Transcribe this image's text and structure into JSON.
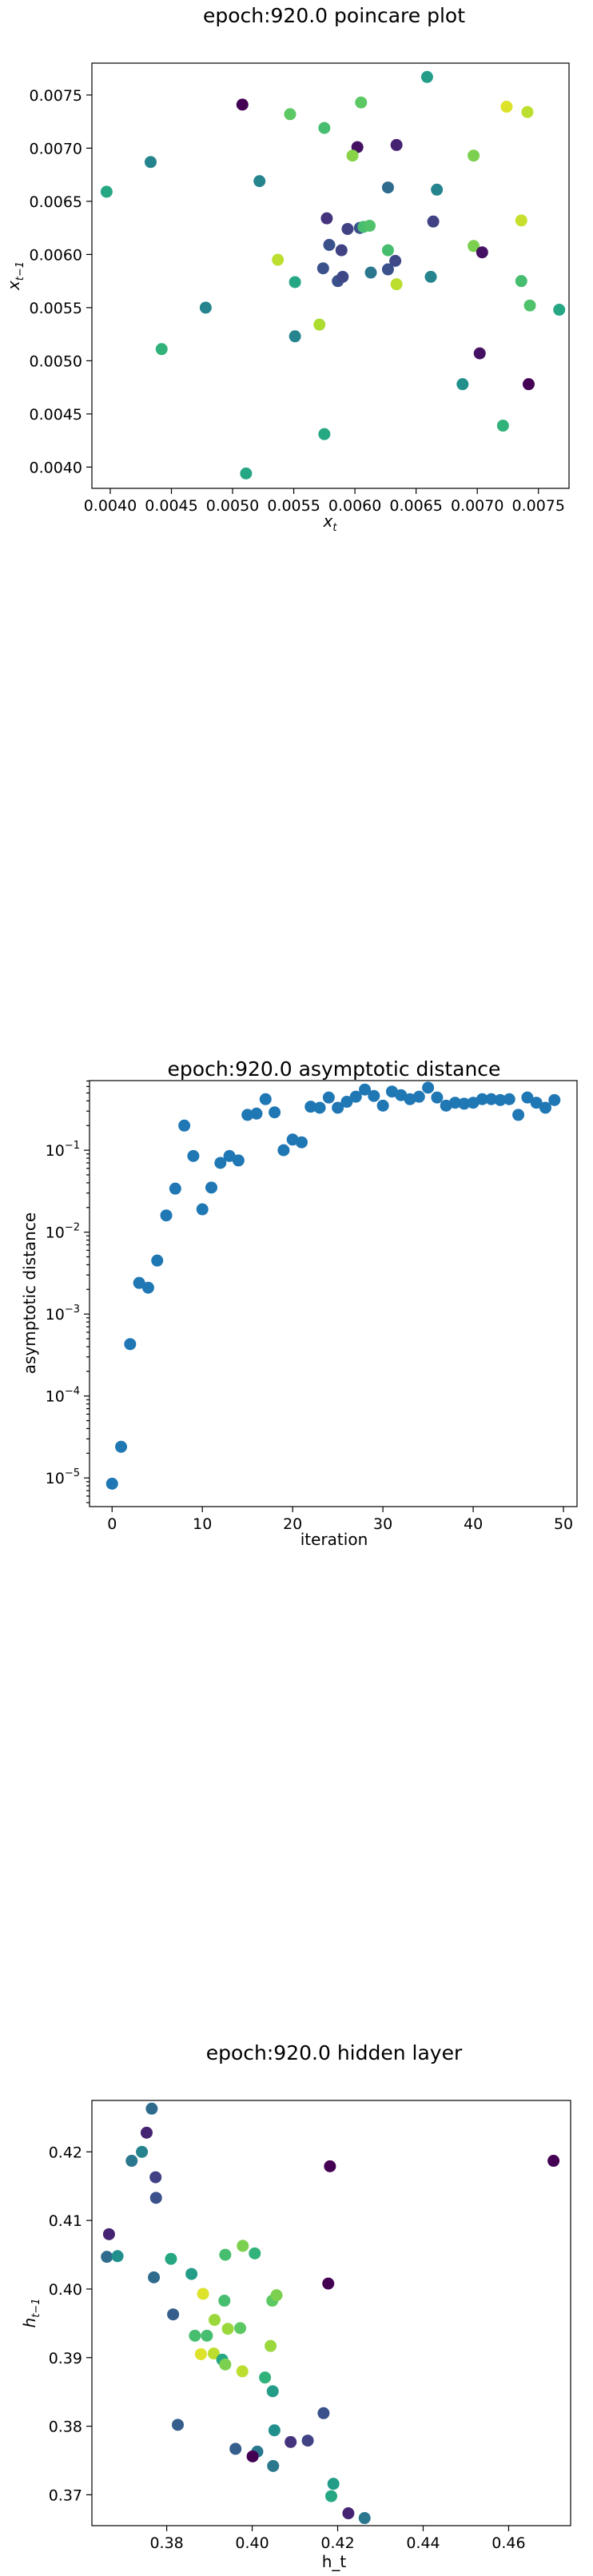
{
  "chart_data": [
    {
      "type": "scatter",
      "title": "epoch:920.0 poincare plot",
      "xlabel": "x_t",
      "ylabel": "x_{t-1}",
      "xlim": [
        0.00385,
        0.00775
      ],
      "ylim": [
        0.0038,
        0.0078
      ],
      "xticks": [
        0.004,
        0.0045,
        0.005,
        0.0055,
        0.006,
        0.0065,
        0.007,
        0.0075
      ],
      "yticks": [
        0.004,
        0.0045,
        0.005,
        0.0055,
        0.006,
        0.0065,
        0.007,
        0.0075
      ],
      "tick_decimals": 4,
      "color_scale": "viridis",
      "points": [
        {
          "x": 0.00508,
          "y": 0.00741,
          "c": 0.0
        },
        {
          "x": 0.00547,
          "y": 0.00732,
          "c": 0.75
        },
        {
          "x": 0.00575,
          "y": 0.00719,
          "c": 0.7
        },
        {
          "x": 0.00605,
          "y": 0.00743,
          "c": 0.75
        },
        {
          "x": 0.00659,
          "y": 0.00767,
          "c": 0.55
        },
        {
          "x": 0.00724,
          "y": 0.00739,
          "c": 0.95
        },
        {
          "x": 0.00741,
          "y": 0.00734,
          "c": 0.9
        },
        {
          "x": 0.00602,
          "y": 0.00701,
          "c": 0.05
        },
        {
          "x": 0.00634,
          "y": 0.00703,
          "c": 0.1
        },
        {
          "x": 0.00697,
          "y": 0.00693,
          "c": 0.8
        },
        {
          "x": 0.00598,
          "y": 0.00693,
          "c": 0.82
        },
        {
          "x": 0.00433,
          "y": 0.00687,
          "c": 0.45
        },
        {
          "x": 0.00397,
          "y": 0.00659,
          "c": 0.6
        },
        {
          "x": 0.00522,
          "y": 0.00669,
          "c": 0.45
        },
        {
          "x": 0.00627,
          "y": 0.00663,
          "c": 0.35
        },
        {
          "x": 0.00667,
          "y": 0.00661,
          "c": 0.45
        },
        {
          "x": 0.00577,
          "y": 0.00634,
          "c": 0.15
        },
        {
          "x": 0.00664,
          "y": 0.00631,
          "c": 0.2
        },
        {
          "x": 0.00736,
          "y": 0.00632,
          "c": 0.92
        },
        {
          "x": 0.00594,
          "y": 0.00624,
          "c": 0.2
        },
        {
          "x": 0.00604,
          "y": 0.00625,
          "c": 0.25
        },
        {
          "x": 0.00607,
          "y": 0.00626,
          "c": 0.7
        },
        {
          "x": 0.00612,
          "y": 0.00627,
          "c": 0.72
        },
        {
          "x": 0.00579,
          "y": 0.00609,
          "c": 0.25
        },
        {
          "x": 0.00589,
          "y": 0.00604,
          "c": 0.2
        },
        {
          "x": 0.00627,
          "y": 0.00604,
          "c": 0.7
        },
        {
          "x": 0.00697,
          "y": 0.00608,
          "c": 0.8
        },
        {
          "x": 0.00704,
          "y": 0.00602,
          "c": 0.05
        },
        {
          "x": 0.00537,
          "y": 0.00595,
          "c": 0.9
        },
        {
          "x": 0.00574,
          "y": 0.00587,
          "c": 0.25
        },
        {
          "x": 0.00633,
          "y": 0.00594,
          "c": 0.22
        },
        {
          "x": 0.00627,
          "y": 0.00586,
          "c": 0.25
        },
        {
          "x": 0.00613,
          "y": 0.00583,
          "c": 0.4
        },
        {
          "x": 0.00586,
          "y": 0.00575,
          "c": 0.25
        },
        {
          "x": 0.0059,
          "y": 0.00579,
          "c": 0.22
        },
        {
          "x": 0.00551,
          "y": 0.00574,
          "c": 0.6
        },
        {
          "x": 0.00662,
          "y": 0.00579,
          "c": 0.45
        },
        {
          "x": 0.00634,
          "y": 0.00572,
          "c": 0.9
        },
        {
          "x": 0.00736,
          "y": 0.00575,
          "c": 0.7
        },
        {
          "x": 0.00478,
          "y": 0.0055,
          "c": 0.45
        },
        {
          "x": 0.00571,
          "y": 0.00534,
          "c": 0.88
        },
        {
          "x": 0.00743,
          "y": 0.00552,
          "c": 0.72
        },
        {
          "x": 0.00767,
          "y": 0.00548,
          "c": 0.6
        },
        {
          "x": 0.00551,
          "y": 0.00523,
          "c": 0.45
        },
        {
          "x": 0.00442,
          "y": 0.00511,
          "c": 0.65
        },
        {
          "x": 0.00702,
          "y": 0.00507,
          "c": 0.05
        },
        {
          "x": 0.00688,
          "y": 0.00478,
          "c": 0.5
        },
        {
          "x": 0.00742,
          "y": 0.00478,
          "c": 0.0
        },
        {
          "x": 0.00575,
          "y": 0.00431,
          "c": 0.6
        },
        {
          "x": 0.00721,
          "y": 0.00439,
          "c": 0.65
        },
        {
          "x": 0.00511,
          "y": 0.00394,
          "c": 0.6
        }
      ]
    },
    {
      "type": "scatter",
      "title": "epoch:920.0 asymptotic distance",
      "xlabel": "iteration",
      "ylabel": "asymptotic distance",
      "xlim": [
        -2.5,
        51.5
      ],
      "ylog": true,
      "ylim_log10": [
        -5.35,
        -0.15
      ],
      "xticks": [
        0,
        10,
        20,
        30,
        40,
        50
      ],
      "ytick_exponents": [
        -5,
        -4,
        -3,
        -2,
        -1
      ],
      "color": "#1f77b4",
      "x": [
        0,
        1,
        2,
        3,
        4,
        5,
        6,
        7,
        8,
        9,
        10,
        11,
        12,
        13,
        14,
        15,
        16,
        17,
        18,
        19,
        20,
        21,
        22,
        23,
        24,
        25,
        26,
        27,
        28,
        29,
        30,
        31,
        32,
        33,
        34,
        35,
        36,
        37,
        38,
        39,
        40,
        41,
        42,
        43,
        44,
        45,
        46,
        47,
        48,
        49
      ],
      "y": [
        8.5e-06,
        2.4e-05,
        0.00043,
        0.0024,
        0.0021,
        0.0045,
        0.016,
        0.034,
        0.2,
        0.085,
        0.019,
        0.035,
        0.07,
        0.085,
        0.075,
        0.27,
        0.28,
        0.42,
        0.29,
        0.1,
        0.135,
        0.125,
        0.34,
        0.33,
        0.44,
        0.33,
        0.39,
        0.45,
        0.55,
        0.46,
        0.35,
        0.52,
        0.47,
        0.42,
        0.45,
        0.58,
        0.44,
        0.35,
        0.38,
        0.37,
        0.38,
        0.42,
        0.42,
        0.41,
        0.42,
        0.27,
        0.44,
        0.38,
        0.33,
        0.41
      ]
    },
    {
      "type": "scatter",
      "title": "epoch:920.0 hidden layer",
      "xlabel": "h_t",
      "ylabel": "h_{t-1}",
      "xlim": [
        0.3625,
        0.4745
      ],
      "ylim": [
        0.3655,
        0.4275
      ],
      "xticks": [
        0.38,
        0.4,
        0.42,
        0.44,
        0.46
      ],
      "yticks": [
        0.37,
        0.38,
        0.39,
        0.4,
        0.41,
        0.42
      ],
      "tick_decimals": 2,
      "color_scale": "viridis",
      "points": [
        {
          "x": 0.3765,
          "y": 0.4263,
          "c": 0.35
        },
        {
          "x": 0.3753,
          "y": 0.4228,
          "c": 0.1
        },
        {
          "x": 0.3742,
          "y": 0.42,
          "c": 0.45
        },
        {
          "x": 0.3718,
          "y": 0.4187,
          "c": 0.4
        },
        {
          "x": 0.3774,
          "y": 0.4163,
          "c": 0.2
        },
        {
          "x": 0.3775,
          "y": 0.4133,
          "c": 0.25
        },
        {
          "x": 0.4182,
          "y": 0.4179,
          "c": 0.0
        },
        {
          "x": 0.4705,
          "y": 0.4187,
          "c": 0.0
        },
        {
          "x": 0.3665,
          "y": 0.408,
          "c": 0.1
        },
        {
          "x": 0.366,
          "y": 0.4047,
          "c": 0.35
        },
        {
          "x": 0.3685,
          "y": 0.4048,
          "c": 0.5
        },
        {
          "x": 0.381,
          "y": 0.4044,
          "c": 0.6
        },
        {
          "x": 0.377,
          "y": 0.4017,
          "c": 0.35
        },
        {
          "x": 0.3858,
          "y": 0.4022,
          "c": 0.55
        },
        {
          "x": 0.3937,
          "y": 0.405,
          "c": 0.7
        },
        {
          "x": 0.3978,
          "y": 0.4063,
          "c": 0.8
        },
        {
          "x": 0.4006,
          "y": 0.4052,
          "c": 0.65
        },
        {
          "x": 0.4047,
          "y": 0.3983,
          "c": 0.75
        },
        {
          "x": 0.4057,
          "y": 0.3991,
          "c": 0.8
        },
        {
          "x": 0.4178,
          "y": 0.4008,
          "c": 0.0
        },
        {
          "x": 0.3885,
          "y": 0.3993,
          "c": 0.95
        },
        {
          "x": 0.3935,
          "y": 0.3983,
          "c": 0.7
        },
        {
          "x": 0.3815,
          "y": 0.3963,
          "c": 0.3
        },
        {
          "x": 0.3912,
          "y": 0.3955,
          "c": 0.85
        },
        {
          "x": 0.3943,
          "y": 0.3942,
          "c": 0.85
        },
        {
          "x": 0.3972,
          "y": 0.3943,
          "c": 0.75
        },
        {
          "x": 0.3866,
          "y": 0.3932,
          "c": 0.7
        },
        {
          "x": 0.3894,
          "y": 0.3932,
          "c": 0.7
        },
        {
          "x": 0.4043,
          "y": 0.3917,
          "c": 0.85
        },
        {
          "x": 0.388,
          "y": 0.3905,
          "c": 0.95
        },
        {
          "x": 0.391,
          "y": 0.3906,
          "c": 0.9
        },
        {
          "x": 0.393,
          "y": 0.3897,
          "c": 0.6
        },
        {
          "x": 0.3937,
          "y": 0.389,
          "c": 0.8
        },
        {
          "x": 0.3977,
          "y": 0.388,
          "c": 0.9
        },
        {
          "x": 0.403,
          "y": 0.3871,
          "c": 0.65
        },
        {
          "x": 0.4048,
          "y": 0.3851,
          "c": 0.55
        },
        {
          "x": 0.4167,
          "y": 0.3819,
          "c": 0.25
        },
        {
          "x": 0.3826,
          "y": 0.3802,
          "c": 0.3
        },
        {
          "x": 0.4052,
          "y": 0.3794,
          "c": 0.5
        },
        {
          "x": 0.413,
          "y": 0.3779,
          "c": 0.2
        },
        {
          "x": 0.409,
          "y": 0.3777,
          "c": 0.15
        },
        {
          "x": 0.3961,
          "y": 0.3767,
          "c": 0.3
        },
        {
          "x": 0.4012,
          "y": 0.3763,
          "c": 0.4
        },
        {
          "x": 0.4001,
          "y": 0.3756,
          "c": 0.0
        },
        {
          "x": 0.4049,
          "y": 0.3742,
          "c": 0.4
        },
        {
          "x": 0.419,
          "y": 0.3716,
          "c": 0.55
        },
        {
          "x": 0.4185,
          "y": 0.3698,
          "c": 0.6
        },
        {
          "x": 0.4225,
          "y": 0.3673,
          "c": 0.1
        },
        {
          "x": 0.4263,
          "y": 0.3666,
          "c": 0.4
        }
      ]
    }
  ]
}
